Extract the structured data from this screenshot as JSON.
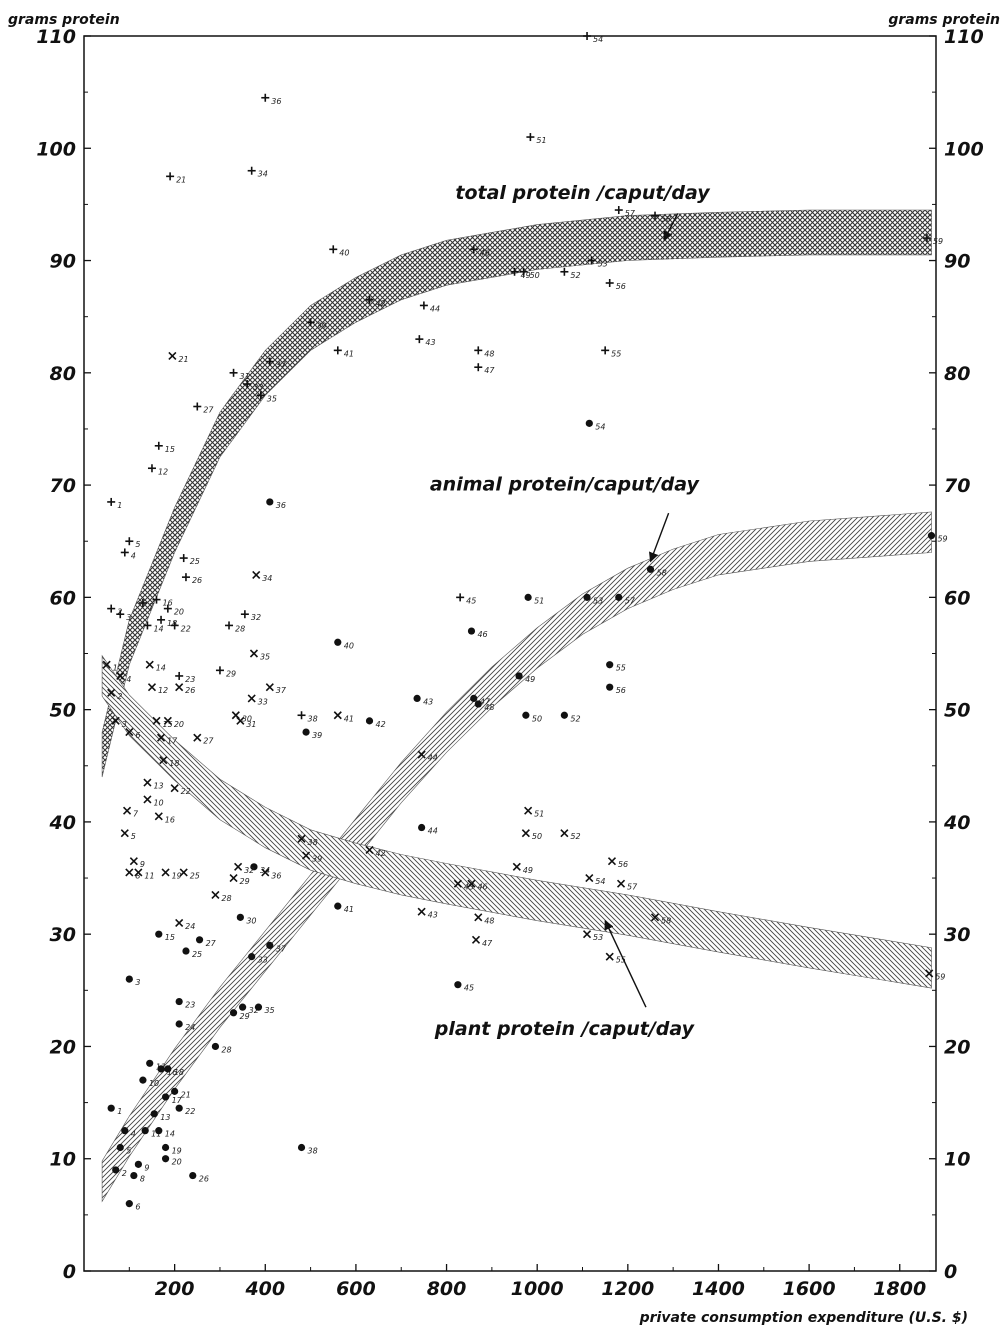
{
  "chart_data": {
    "type": "scatter",
    "ylabel": "grams protein",
    "ylabel_right": "grams protein",
    "xlabel": "private consumption expenditure (U.S. $)",
    "xlim": [
      0,
      1880
    ],
    "ylim": [
      0,
      110
    ],
    "xticks": [
      "200",
      "400",
      "600",
      "800",
      "1000",
      "1200",
      "1400",
      "1600",
      "1800"
    ],
    "yticks": [
      "0",
      "10",
      "20",
      "30",
      "40",
      "50",
      "60",
      "70",
      "80",
      "90",
      "100",
      "110"
    ],
    "grid": false,
    "markers": {
      "total": "+",
      "animal": "●",
      "plant": "x"
    },
    "colors": {
      "ink": "#111111",
      "band": "#555555"
    },
    "bands": [
      {
        "name": "total protein /caput/day",
        "x": [
          40,
          100,
          200,
          300,
          400,
          500,
          600,
          700,
          800,
          1000,
          1200,
          1400,
          1600,
          1870
        ],
        "y": [
          46,
          56,
          66,
          74.5,
          80,
          84,
          86.5,
          88.5,
          89.8,
          91.2,
          92,
          92.3,
          92.5,
          92.5
        ]
      },
      {
        "name": "animal protein/caput/day",
        "x": [
          40,
          100,
          200,
          300,
          400,
          500,
          600,
          700,
          800,
          900,
          1000,
          1100,
          1200,
          1300,
          1400,
          1600,
          1870
        ],
        "y": [
          8,
          12,
          18,
          23.5,
          28.5,
          33.5,
          38.5,
          43.5,
          48,
          52,
          55.5,
          58.5,
          60.8,
          62.5,
          63.8,
          65,
          65.8
        ]
      },
      {
        "name": "plant protein /caput/day",
        "x": [
          40,
          100,
          200,
          300,
          400,
          500,
          600,
          700,
          800,
          1000,
          1200,
          1400,
          1600,
          1870
        ],
        "y": [
          53,
          49.5,
          45.5,
          42,
          39.5,
          37.5,
          36.3,
          35.3,
          34.5,
          33,
          31.7,
          30.2,
          28.8,
          27
        ]
      }
    ],
    "annotations": [
      {
        "text": "total protein /caput/day",
        "x": 1100,
        "y": 95.5
      },
      {
        "text": "animal protein/caput/day",
        "x": 1060,
        "y": 69.5
      },
      {
        "text": "plant protein /caput/day",
        "x": 1060,
        "y": 21
      },
      {
        "text": "grams protein",
        "position": "top-left"
      },
      {
        "text": "grams protein",
        "position": "top-right"
      }
    ],
    "series": [
      {
        "marker": "+",
        "points": [
          {
            "x": 60,
            "y": 68.5,
            "label": "1"
          },
          {
            "x": 100,
            "y": 65,
            "label": "5"
          },
          {
            "x": 90,
            "y": 64,
            "label": "4"
          },
          {
            "x": 60,
            "y": 59,
            "label": "2"
          },
          {
            "x": 80,
            "y": 58.5,
            "label": "3"
          },
          {
            "x": 130,
            "y": 59.5,
            "label": "7"
          },
          {
            "x": 140,
            "y": 57.5,
            "label": "14"
          },
          {
            "x": 160,
            "y": 59.8,
            "label": "16"
          },
          {
            "x": 170,
            "y": 58,
            "label": "18"
          },
          {
            "x": 185,
            "y": 59,
            "label": "20"
          },
          {
            "x": 150,
            "y": 71.5,
            "label": "12"
          },
          {
            "x": 165,
            "y": 73.5,
            "label": "15"
          },
          {
            "x": 200,
            "y": 57.5,
            "label": "22"
          },
          {
            "x": 190,
            "y": 97.5,
            "label": "21"
          },
          {
            "x": 220,
            "y": 63.5,
            "label": "25"
          },
          {
            "x": 225,
            "y": 61.8,
            "label": "26"
          },
          {
            "x": 210,
            "y": 53,
            "label": "23"
          },
          {
            "x": 250,
            "y": 77,
            "label": "27"
          },
          {
            "x": 300,
            "y": 53.5,
            "label": "29"
          },
          {
            "x": 320,
            "y": 57.5,
            "label": "28"
          },
          {
            "x": 330,
            "y": 80,
            "label": "31"
          },
          {
            "x": 355,
            "y": 58.5,
            "label": "32"
          },
          {
            "x": 360,
            "y": 79,
            "label": "33"
          },
          {
            "x": 370,
            "y": 98,
            "label": "34"
          },
          {
            "x": 400,
            "y": 104.5,
            "label": "36"
          },
          {
            "x": 390,
            "y": 78,
            "label": "35"
          },
          {
            "x": 410,
            "y": 81,
            "label": "37"
          },
          {
            "x": 480,
            "y": 49.5,
            "label": "38"
          },
          {
            "x": 500,
            "y": 84.5,
            "label": "39"
          },
          {
            "x": 550,
            "y": 91,
            "label": "40"
          },
          {
            "x": 560,
            "y": 82,
            "label": "41"
          },
          {
            "x": 630,
            "y": 86.5,
            "label": "42"
          },
          {
            "x": 740,
            "y": 83,
            "label": "43"
          },
          {
            "x": 750,
            "y": 86,
            "label": "44"
          },
          {
            "x": 830,
            "y": 60,
            "label": "45"
          },
          {
            "x": 860,
            "y": 91,
            "label": "46"
          },
          {
            "x": 870,
            "y": 80.5,
            "label": "47"
          },
          {
            "x": 870,
            "y": 82,
            "label": "48"
          },
          {
            "x": 950,
            "y": 89,
            "label": "49"
          },
          {
            "x": 970,
            "y": 89,
            "label": "50"
          },
          {
            "x": 985,
            "y": 101,
            "label": "51"
          },
          {
            "x": 1060,
            "y": 89,
            "label": "52"
          },
          {
            "x": 1120,
            "y": 90,
            "label": "53"
          },
          {
            "x": 1110,
            "y": 110,
            "label": "54"
          },
          {
            "x": 1150,
            "y": 82,
            "label": "55"
          },
          {
            "x": 1160,
            "y": 88,
            "label": "56"
          },
          {
            "x": 1180,
            "y": 94.5,
            "label": "57"
          },
          {
            "x": 1260,
            "y": 94,
            "label": "58"
          },
          {
            "x": 1860,
            "y": 92,
            "label": "59"
          }
        ]
      },
      {
        "marker": "●",
        "points": [
          {
            "x": 60,
            "y": 14.5,
            "label": "1"
          },
          {
            "x": 100,
            "y": 26,
            "label": "3"
          },
          {
            "x": 90,
            "y": 12.5,
            "label": "4"
          },
          {
            "x": 70,
            "y": 9,
            "label": "2"
          },
          {
            "x": 80,
            "y": 11,
            "label": "5"
          },
          {
            "x": 100,
            "y": 6,
            "label": "6"
          },
          {
            "x": 110,
            "y": 8.5,
            "label": "8"
          },
          {
            "x": 120,
            "y": 9.5,
            "label": "9"
          },
          {
            "x": 130,
            "y": 17,
            "label": "10"
          },
          {
            "x": 135,
            "y": 12.5,
            "label": "11"
          },
          {
            "x": 145,
            "y": 18.5,
            "label": "12"
          },
          {
            "x": 155,
            "y": 14,
            "label": "13"
          },
          {
            "x": 165,
            "y": 12.5,
            "label": "14"
          },
          {
            "x": 165,
            "y": 30,
            "label": "15"
          },
          {
            "x": 170,
            "y": 18,
            "label": "16"
          },
          {
            "x": 180,
            "y": 15.5,
            "label": "17"
          },
          {
            "x": 185,
            "y": 18,
            "label": "18"
          },
          {
            "x": 180,
            "y": 11,
            "label": "19"
          },
          {
            "x": 180,
            "y": 10,
            "label": "20"
          },
          {
            "x": 200,
            "y": 16,
            "label": "21"
          },
          {
            "x": 210,
            "y": 14.5,
            "label": "22"
          },
          {
            "x": 210,
            "y": 24,
            "label": "23"
          },
          {
            "x": 210,
            "y": 22,
            "label": "24"
          },
          {
            "x": 225,
            "y": 28.5,
            "label": "25"
          },
          {
            "x": 240,
            "y": 8.5,
            "label": "26"
          },
          {
            "x": 255,
            "y": 29.5,
            "label": "27"
          },
          {
            "x": 290,
            "y": 20,
            "label": "28"
          },
          {
            "x": 330,
            "y": 23,
            "label": "29"
          },
          {
            "x": 345,
            "y": 31.5,
            "label": "30"
          },
          {
            "x": 350,
            "y": 23.5,
            "label": "32"
          },
          {
            "x": 370,
            "y": 28,
            "label": "33"
          },
          {
            "x": 375,
            "y": 36,
            "label": "34"
          },
          {
            "x": 385,
            "y": 23.5,
            "label": "35"
          },
          {
            "x": 410,
            "y": 68.5,
            "label": "36"
          },
          {
            "x": 410,
            "y": 29,
            "label": "37"
          },
          {
            "x": 480,
            "y": 11,
            "label": "38"
          },
          {
            "x": 490,
            "y": 48,
            "label": "39"
          },
          {
            "x": 560,
            "y": 56,
            "label": "40"
          },
          {
            "x": 560,
            "y": 32.5,
            "label": "41"
          },
          {
            "x": 630,
            "y": 49,
            "label": "42"
          },
          {
            "x": 735,
            "y": 51,
            "label": "43"
          },
          {
            "x": 745,
            "y": 39.5,
            "label": "44"
          },
          {
            "x": 825,
            "y": 25.5,
            "label": "45"
          },
          {
            "x": 855,
            "y": 57,
            "label": "46"
          },
          {
            "x": 860,
            "y": 51,
            "label": "47"
          },
          {
            "x": 870,
            "y": 50.5,
            "label": "48"
          },
          {
            "x": 960,
            "y": 53,
            "label": "49"
          },
          {
            "x": 975,
            "y": 49.5,
            "label": "50"
          },
          {
            "x": 980,
            "y": 60,
            "label": "51"
          },
          {
            "x": 1060,
            "y": 49.5,
            "label": "52"
          },
          {
            "x": 1110,
            "y": 60,
            "label": "53"
          },
          {
            "x": 1115,
            "y": 75.5,
            "label": "54"
          },
          {
            "x": 1160,
            "y": 54,
            "label": "55"
          },
          {
            "x": 1160,
            "y": 52,
            "label": "56"
          },
          {
            "x": 1180,
            "y": 60,
            "label": "57"
          },
          {
            "x": 1250,
            "y": 62.5,
            "label": "58"
          },
          {
            "x": 1870,
            "y": 65.5,
            "label": "59"
          }
        ]
      },
      {
        "marker": "x",
        "points": [
          {
            "x": 50,
            "y": 54,
            "label": "1"
          },
          {
            "x": 60,
            "y": 51.5,
            "label": "2"
          },
          {
            "x": 70,
            "y": 49,
            "label": "3"
          },
          {
            "x": 80,
            "y": 53,
            "label": "4"
          },
          {
            "x": 90,
            "y": 39,
            "label": "5"
          },
          {
            "x": 100,
            "y": 48,
            "label": "6"
          },
          {
            "x": 95,
            "y": 41,
            "label": "7"
          },
          {
            "x": 100,
            "y": 35.5,
            "label": "8"
          },
          {
            "x": 110,
            "y": 36.5,
            "label": "9"
          },
          {
            "x": 140,
            "y": 42,
            "label": "10"
          },
          {
            "x": 120,
            "y": 35.5,
            "label": "11"
          },
          {
            "x": 150,
            "y": 52,
            "label": "12"
          },
          {
            "x": 140,
            "y": 43.5,
            "label": "13"
          },
          {
            "x": 145,
            "y": 54,
            "label": "14"
          },
          {
            "x": 160,
            "y": 49,
            "label": "15"
          },
          {
            "x": 165,
            "y": 40.5,
            "label": "16"
          },
          {
            "x": 170,
            "y": 47.5,
            "label": "17"
          },
          {
            "x": 175,
            "y": 45.5,
            "label": "18"
          },
          {
            "x": 180,
            "y": 35.5,
            "label": "19"
          },
          {
            "x": 185,
            "y": 49,
            "label": "20"
          },
          {
            "x": 195,
            "y": 81.5,
            "label": "21"
          },
          {
            "x": 200,
            "y": 43,
            "label": "22"
          },
          {
            "x": 210,
            "y": 31,
            "label": "24"
          },
          {
            "x": 220,
            "y": 35.5,
            "label": "25"
          },
          {
            "x": 210,
            "y": 52,
            "label": "26"
          },
          {
            "x": 250,
            "y": 47.5,
            "label": "27"
          },
          {
            "x": 290,
            "y": 33.5,
            "label": "28"
          },
          {
            "x": 330,
            "y": 35,
            "label": "29"
          },
          {
            "x": 335,
            "y": 49.5,
            "label": "30"
          },
          {
            "x": 345,
            "y": 49,
            "label": "31"
          },
          {
            "x": 340,
            "y": 36,
            "label": "32"
          },
          {
            "x": 370,
            "y": 51,
            "label": "33"
          },
          {
            "x": 380,
            "y": 62,
            "label": "34"
          },
          {
            "x": 375,
            "y": 55,
            "label": "35"
          },
          {
            "x": 400,
            "y": 35.5,
            "label": "36"
          },
          {
            "x": 410,
            "y": 52,
            "label": "37"
          },
          {
            "x": 480,
            "y": 38.5,
            "label": "38"
          },
          {
            "x": 490,
            "y": 37,
            "label": "39"
          },
          {
            "x": 560,
            "y": 49.5,
            "label": "41"
          },
          {
            "x": 630,
            "y": 37.5,
            "label": "42"
          },
          {
            "x": 745,
            "y": 32,
            "label": "43"
          },
          {
            "x": 745,
            "y": 46,
            "label": "44"
          },
          {
            "x": 825,
            "y": 34.5,
            "label": "45"
          },
          {
            "x": 855,
            "y": 34.5,
            "label": "46"
          },
          {
            "x": 865,
            "y": 29.5,
            "label": "47"
          },
          {
            "x": 870,
            "y": 31.5,
            "label": "48"
          },
          {
            "x": 955,
            "y": 36,
            "label": "49"
          },
          {
            "x": 975,
            "y": 39,
            "label": "50"
          },
          {
            "x": 980,
            "y": 41,
            "label": "51"
          },
          {
            "x": 1060,
            "y": 39,
            "label": "52"
          },
          {
            "x": 1110,
            "y": 30,
            "label": "53"
          },
          {
            "x": 1115,
            "y": 35,
            "label": "54"
          },
          {
            "x": 1160,
            "y": 28,
            "label": "55"
          },
          {
            "x": 1165,
            "y": 36.5,
            "label": "56"
          },
          {
            "x": 1185,
            "y": 34.5,
            "label": "57"
          },
          {
            "x": 1260,
            "y": 31.5,
            "label": "58"
          },
          {
            "x": 1865,
            "y": 26.5,
            "label": "59"
          }
        ]
      }
    ]
  }
}
